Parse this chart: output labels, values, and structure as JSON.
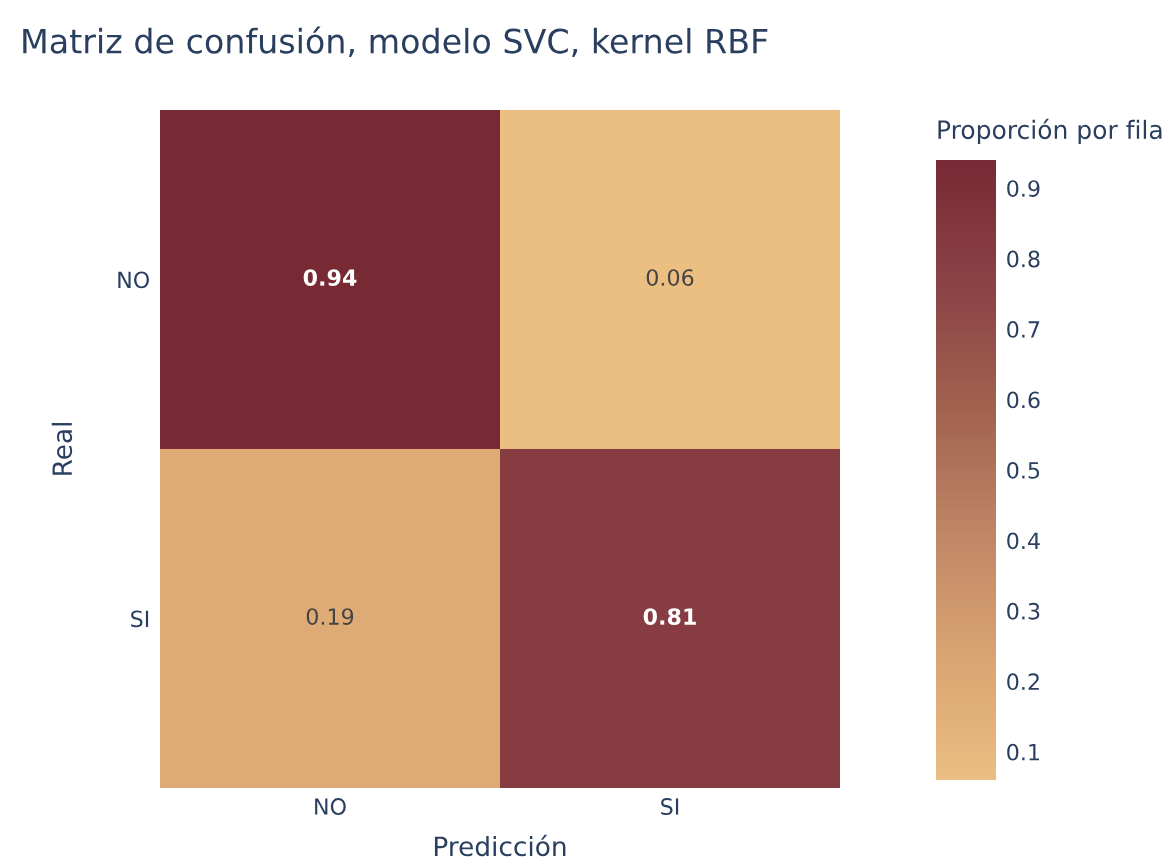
{
  "chart_data": {
    "type": "heatmap",
    "title": "Matriz de confusión, modelo SVC, kernel RBF",
    "xlabel": "Predicción",
    "ylabel": "Real",
    "clabel": "Proporción por fila",
    "categories": [
      "NO",
      "SI"
    ],
    "y_categories": [
      "NO",
      "SI"
    ],
    "cells": [
      [
        0.94,
        0.06
      ],
      [
        0.19,
        0.81
      ]
    ],
    "data_labels": true,
    "clim": [
      0.06,
      0.94
    ],
    "cticks": [
      0.1,
      0.2,
      0.3,
      0.4,
      0.5,
      0.6,
      0.7,
      0.8,
      0.9
    ]
  }
}
